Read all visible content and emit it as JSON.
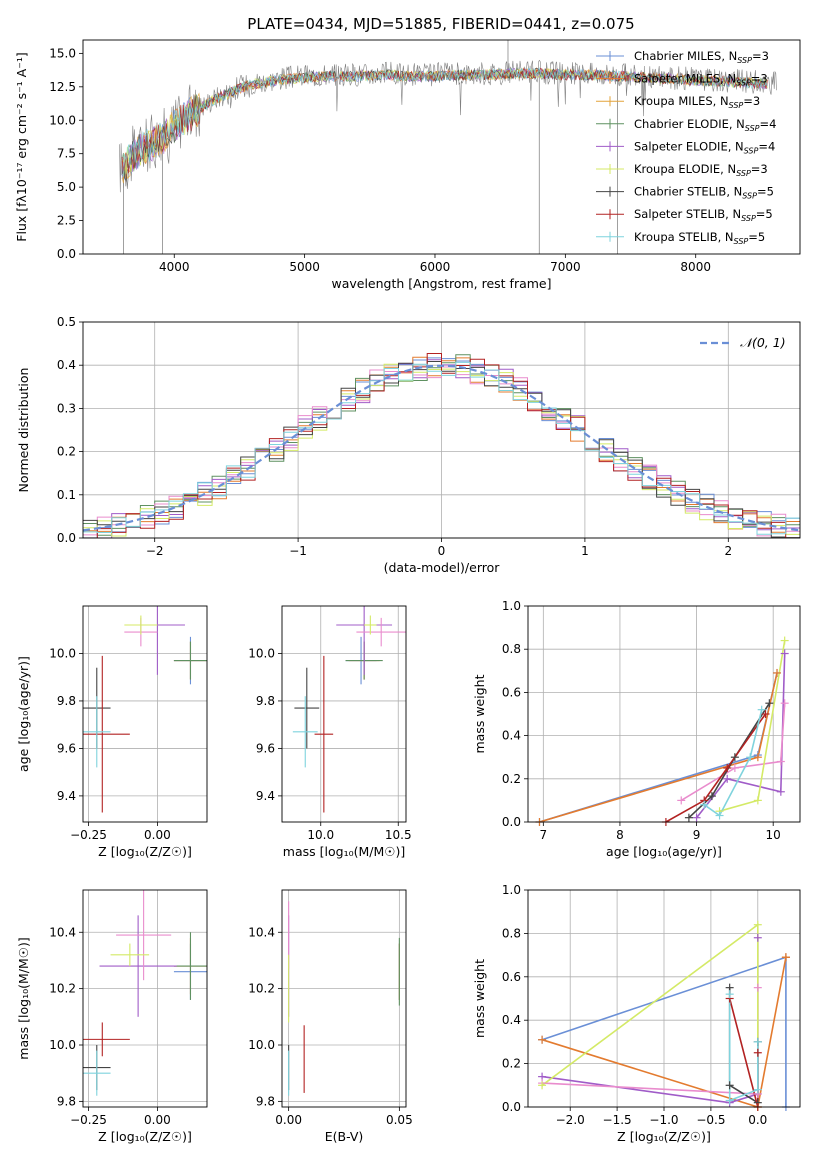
{
  "figure_title": "PLATE=0434, MJD=51885, FIBERID=0441, z=0.075",
  "model_colors": [
    "#6a8fd6",
    "#e37b2f",
    "#5f9161",
    "#a05cc8",
    "#e98ccd",
    "#d4ea66",
    "#444444",
    "#b22222",
    "#7fd3dd"
  ],
  "chart_data": [
    {
      "id": "spectrum",
      "type": "line",
      "title": "PLATE=0434, MJD=51885, FIBERID=0441, z=0.075",
      "xlabel": "wavelength [Angstrom, rest frame]",
      "ylabel": "Flux [fλ10⁻¹⁷ erg cm⁻² s⁻¹ A⁻¹]",
      "xlim": [
        3300,
        8800
      ],
      "ylim": [
        0,
        16
      ],
      "xticks": [
        4000,
        5000,
        6000,
        7000,
        8000
      ],
      "yticks": [
        0.0,
        2.5,
        5.0,
        7.5,
        10.0,
        12.5,
        15.0
      ],
      "grid": false,
      "legend": "right",
      "data": {
        "color": "#808080",
        "x": [
          3600,
          3700,
          3800,
          3900,
          4000,
          4100,
          4200,
          4300,
          4400,
          4500,
          4600,
          4800,
          5000,
          5200,
          5400,
          5600,
          5800,
          6000,
          6200,
          6400,
          6600,
          6800,
          7000,
          7200,
          7400,
          7600,
          7800,
          8000,
          8200,
          8400,
          8600
        ],
        "y": [
          6.5,
          7.6,
          8.2,
          8.7,
          9.6,
          10.4,
          11.0,
          11.6,
          12.0,
          12.5,
          12.8,
          13.1,
          13.3,
          13.4,
          13.4,
          13.5,
          13.4,
          13.4,
          13.5,
          13.5,
          13.6,
          13.6,
          13.5,
          13.5,
          13.4,
          13.3,
          13.2,
          13.1,
          13.0,
          12.9,
          12.8
        ]
      },
      "series": [
        {
          "name": "Chabrier MILES, N_SSP=3",
          "label": "Chabrier MILES, N",
          "sub": "SSP",
          "suffix": "=3",
          "color": "#6a8fd6"
        },
        {
          "name": "Salpeter MILES, N_SSP=3",
          "label": "Salpeter MILES, N",
          "sub": "SSP",
          "suffix": "=3",
          "color": "#e37b2f"
        },
        {
          "name": "Kroupa MILES, N_SSP=3",
          "label": "Kroupa MILES, N",
          "sub": "SSP",
          "suffix": "=3",
          "color": "#e3a33a"
        },
        {
          "name": "Chabrier ELODIE, N_SSP=4",
          "label": "Chabrier ELODIE, N",
          "sub": "SSP",
          "suffix": "=4",
          "color": "#5f9161"
        },
        {
          "name": "Salpeter ELODIE, N_SSP=4",
          "label": "Salpeter ELODIE, N",
          "sub": "SSP",
          "suffix": "=4",
          "color": "#a05cc8"
        },
        {
          "name": "Kroupa ELODIE, N_SSP=3",
          "label": "Kroupa ELODIE, N",
          "sub": "SSP",
          "suffix": "=3",
          "color": "#d4ea66"
        },
        {
          "name": "Chabrier STELIB, N_SSP=5",
          "label": "Chabrier STELIB, N",
          "sub": "SSP",
          "suffix": "=5",
          "color": "#444444"
        },
        {
          "name": "Salpeter STELIB, N_SSP=5",
          "label": "Salpeter STELIB, N",
          "sub": "SSP",
          "suffix": "=5",
          "color": "#b22222"
        },
        {
          "name": "Kroupa STELIB, N_SSP=5",
          "label": "Kroupa STELIB, N",
          "sub": "SSP",
          "suffix": "=5",
          "color": "#7fd3dd"
        }
      ]
    },
    {
      "id": "residuals",
      "type": "line",
      "xlabel": "(data-model)/error",
      "ylabel": "Normed distribution",
      "xlim": [
        -2.5,
        2.5
      ],
      "ylim": [
        0,
        0.5
      ],
      "xticks": [
        -2,
        -1,
        0,
        1,
        2
      ],
      "yticks": [
        0.0,
        0.1,
        0.2,
        0.3,
        0.4,
        0.5
      ],
      "grid": true,
      "legend": "top-right",
      "reference": {
        "name": "𝒩(0, 1)",
        "type": "gaussian",
        "mu": 0,
        "sigma": 1,
        "color": "#6a8fd6"
      },
      "histogram": {
        "bin_width": 0.1,
        "note": "one step histogram per model, values scatter around the reference curve"
      }
    },
    {
      "id": "age_vs_Z",
      "type": "scatter",
      "xlabel": "Z [log₁₀(Z/Z☉)]",
      "ylabel": "age  [log₁₀(age/yr)]",
      "xlim": [
        -0.27,
        0.18
      ],
      "ylim": [
        9.29,
        10.2
      ],
      "xticks": [
        -0.25,
        0.0
      ],
      "yticks": [
        9.4,
        9.6,
        9.8,
        10.0
      ],
      "grid": true,
      "points": [
        {
          "c": 0,
          "x": 0.12,
          "y": 9.97,
          "xe": 0.06,
          "ye": 0.1
        },
        {
          "c": 1,
          "x": 0.12,
          "y": 9.97,
          "xe": 0.06,
          "ye": 0.08
        },
        {
          "c": 2,
          "x": 0.12,
          "y": 9.97,
          "xe": 0.06,
          "ye": 0.08
        },
        {
          "c": 3,
          "x": 0.0,
          "y": 10.12,
          "xe": 0.1,
          "ye": 0.21
        },
        {
          "c": 4,
          "x": -0.06,
          "y": 10.09,
          "xe": 0.06,
          "ye": 0.06
        },
        {
          "c": 5,
          "x": -0.06,
          "y": 10.12,
          "xe": 0.06,
          "ye": 0.04
        },
        {
          "c": 6,
          "x": -0.22,
          "y": 9.77,
          "xe": 0.05,
          "ye": 0.17
        },
        {
          "c": 7,
          "x": -0.2,
          "y": 9.66,
          "xe": 0.1,
          "ye": 0.33
        },
        {
          "c": 8,
          "x": -0.22,
          "y": 9.67,
          "xe": 0.05,
          "ye": 0.15
        }
      ]
    },
    {
      "id": "age_vs_mass",
      "type": "scatter",
      "xlabel": "mass [log₁₀(M/M☉)]",
      "ylabel": "",
      "xlim": [
        9.75,
        10.55
      ],
      "ylim": [
        9.29,
        10.2
      ],
      "xticks": [
        10.0,
        10.5
      ],
      "yticks": [
        9.4,
        9.6,
        9.8,
        10.0
      ],
      "grid": true,
      "points": [
        {
          "c": 0,
          "x": 10.26,
          "y": 9.97,
          "xe": 0.1,
          "ye": 0.1
        },
        {
          "c": 1,
          "x": 10.28,
          "y": 9.97,
          "xe": 0.1,
          "ye": 0.08
        },
        {
          "c": 2,
          "x": 10.28,
          "y": 9.97,
          "xe": 0.12,
          "ye": 0.08
        },
        {
          "c": 3,
          "x": 10.28,
          "y": 10.12,
          "xe": 0.18,
          "ye": 0.21
        },
        {
          "c": 4,
          "x": 10.39,
          "y": 10.09,
          "xe": 0.16,
          "ye": 0.06
        },
        {
          "c": 5,
          "x": 10.32,
          "y": 10.12,
          "xe": 0.04,
          "ye": 0.04
        },
        {
          "c": 6,
          "x": 9.91,
          "y": 9.77,
          "xe": 0.08,
          "ye": 0.17
        },
        {
          "c": 7,
          "x": 10.02,
          "y": 9.66,
          "xe": 0.06,
          "ye": 0.33
        },
        {
          "c": 8,
          "x": 9.9,
          "y": 9.67,
          "xe": 0.08,
          "ye": 0.15
        }
      ]
    },
    {
      "id": "massweight_vs_age",
      "type": "line",
      "xlabel": "age  [log₁₀(age/yr)]",
      "ylabel": "mass weight",
      "xlim": [
        6.8,
        10.35
      ],
      "ylim": [
        0,
        1
      ],
      "xticks": [
        7,
        8,
        9,
        10
      ],
      "yticks": [
        0.0,
        0.2,
        0.4,
        0.6,
        0.8,
        1.0
      ],
      "grid": true,
      "series": [
        {
          "c": 0,
          "x": [
            6.95,
            9.8,
            10.05
          ],
          "y": [
            0.0,
            0.31,
            0.69
          ]
        },
        {
          "c": 1,
          "x": [
            6.95,
            9.8,
            10.05
          ],
          "y": [
            0.0,
            0.3,
            0.69
          ]
        },
        {
          "c": 3,
          "x": [
            9.0,
            9.4,
            10.1,
            10.15
          ],
          "y": [
            0.02,
            0.2,
            0.14,
            0.78
          ]
        },
        {
          "c": 4,
          "x": [
            8.8,
            9.5,
            10.1,
            10.15
          ],
          "y": [
            0.1,
            0.25,
            0.28,
            0.55
          ]
        },
        {
          "c": 5,
          "x": [
            9.3,
            9.8,
            10.15
          ],
          "y": [
            0.05,
            0.1,
            0.84
          ]
        },
        {
          "c": 6,
          "x": [
            8.9,
            9.2,
            9.5,
            9.95
          ],
          "y": [
            0.02,
            0.12,
            0.3,
            0.55
          ]
        },
        {
          "c": 7,
          "x": [
            8.6,
            9.1,
            9.4,
            9.9
          ],
          "y": [
            0.0,
            0.1,
            0.25,
            0.5
          ]
        },
        {
          "c": 8,
          "x": [
            9.1,
            9.3,
            9.7,
            9.85
          ],
          "y": [
            0.08,
            0.03,
            0.3,
            0.52
          ]
        }
      ]
    },
    {
      "id": "mass_vs_Z",
      "type": "scatter",
      "xlabel": "Z [log₁₀(Z/Z☉)]",
      "ylabel": "mass [log₁₀(M/M☉)]",
      "xlim": [
        -0.27,
        0.18
      ],
      "ylim": [
        9.78,
        10.55
      ],
      "xticks": [
        -0.25,
        0.0
      ],
      "yticks": [
        9.8,
        10.0,
        10.2,
        10.4
      ],
      "grid": true,
      "points": [
        {
          "c": 0,
          "x": 0.12,
          "y": 10.26,
          "xe": 0.06,
          "ye": 0.1
        },
        {
          "c": 1,
          "x": 0.12,
          "y": 10.28,
          "xe": 0.06,
          "ye": 0.1
        },
        {
          "c": 2,
          "x": 0.12,
          "y": 10.28,
          "xe": 0.06,
          "ye": 0.12
        },
        {
          "c": 3,
          "x": -0.07,
          "y": 10.28,
          "xe": 0.14,
          "ye": 0.18
        },
        {
          "c": 4,
          "x": -0.05,
          "y": 10.39,
          "xe": 0.1,
          "ye": 0.16
        },
        {
          "c": 5,
          "x": -0.1,
          "y": 10.32,
          "xe": 0.07,
          "ye": 0.04
        },
        {
          "c": 6,
          "x": -0.22,
          "y": 9.92,
          "xe": 0.05,
          "ye": 0.08
        },
        {
          "c": 7,
          "x": -0.2,
          "y": 10.02,
          "xe": 0.1,
          "ye": 0.06
        },
        {
          "c": 8,
          "x": -0.22,
          "y": 9.9,
          "xe": 0.05,
          "ye": 0.08
        }
      ]
    },
    {
      "id": "mass_vs_EBV",
      "type": "scatter",
      "xlabel": "E(B-V)",
      "ylabel": "",
      "xlim": [
        -0.003,
        0.053
      ],
      "ylim": [
        9.78,
        10.55
      ],
      "xticks": [
        0.0,
        0.05
      ],
      "yticks": [
        9.8,
        10.0,
        10.2,
        10.4
      ],
      "grid": true,
      "points": [
        {
          "c": 0,
          "x": 0.05,
          "y": 10.26,
          "xe": 0,
          "ye": 0.1
        },
        {
          "c": 1,
          "x": 0.05,
          "y": 10.26,
          "xe": 0,
          "ye": 0.1
        },
        {
          "c": 2,
          "x": 0.05,
          "y": 10.26,
          "xe": 0,
          "ye": 0.12
        },
        {
          "c": 3,
          "x": 0.0,
          "y": 10.28,
          "xe": 0,
          "ye": 0.18
        },
        {
          "c": 4,
          "x": 0.0,
          "y": 10.39,
          "xe": 0,
          "ye": 0.12
        },
        {
          "c": 5,
          "x": 0.0,
          "y": 10.2,
          "xe": 0,
          "ye": 0.12
        },
        {
          "c": 6,
          "x": 0.0,
          "y": 9.92,
          "xe": 0,
          "ye": 0.08
        },
        {
          "c": 7,
          "x": 0.007,
          "y": 9.95,
          "xe": 0,
          "ye": 0.12
        },
        {
          "c": 8,
          "x": 0.0,
          "y": 9.9,
          "xe": 0,
          "ye": 0.08
        }
      ]
    },
    {
      "id": "massweight_vs_Z",
      "type": "line",
      "xlabel": "Z [log₁₀(Z/Z☉)]",
      "ylabel": "mass weight",
      "xlim": [
        -2.45,
        0.45
      ],
      "ylim": [
        0,
        1
      ],
      "xticks": [
        -2.0,
        -1.5,
        -1.0,
        -0.5,
        0.0
      ],
      "yticks": [
        0.0,
        0.2,
        0.4,
        0.6,
        0.8,
        1.0
      ],
      "grid": true,
      "series": [
        {
          "c": 0,
          "x": [
            -2.3,
            0.3,
            0.3
          ],
          "y": [
            0.31,
            0.69,
            0.0
          ]
        },
        {
          "c": 1,
          "x": [
            -2.3,
            0.0,
            0.3,
            0.3
          ],
          "y": [
            0.31,
            0.0,
            0.69,
            0.69
          ]
        },
        {
          "c": 3,
          "x": [
            -2.3,
            -0.3,
            0.0,
            0.0
          ],
          "y": [
            0.14,
            0.02,
            0.06,
            0.78
          ]
        },
        {
          "c": 4,
          "x": [
            -2.3,
            0.0,
            0.0
          ],
          "y": [
            0.11,
            0.06,
            0.55
          ]
        },
        {
          "c": 5,
          "x": [
            -2.3,
            0.0,
            0.0
          ],
          "y": [
            0.1,
            0.84,
            0.0
          ]
        },
        {
          "c": 6,
          "x": [
            -0.3,
            -0.3,
            0.0,
            0.0
          ],
          "y": [
            0.55,
            0.1,
            0.02,
            0.3
          ]
        },
        {
          "c": 7,
          "x": [
            -0.3,
            0.0,
            0.0
          ],
          "y": [
            0.5,
            0.0,
            0.25
          ]
        },
        {
          "c": 8,
          "x": [
            -0.3,
            -0.3,
            0.0,
            0.0
          ],
          "y": [
            0.52,
            0.03,
            0.08,
            0.3
          ]
        }
      ]
    }
  ]
}
